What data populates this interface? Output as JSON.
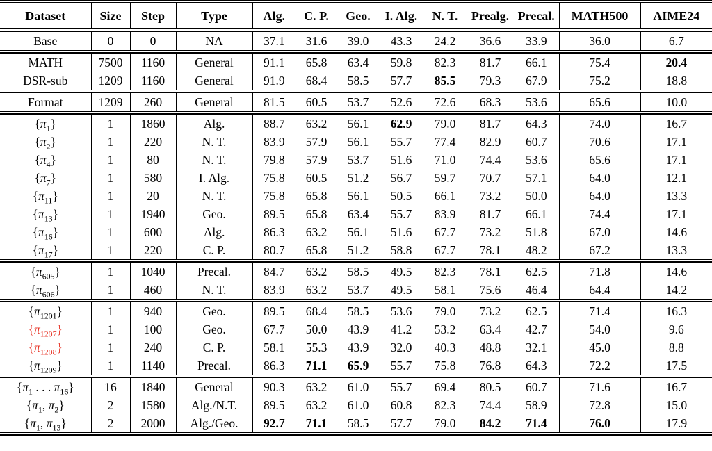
{
  "colors": {
    "text": "#000000",
    "rule": "#000000",
    "highlight_red": "#e8392c"
  },
  "table": {
    "columns": [
      {
        "key": "dataset",
        "label": "Dataset"
      },
      {
        "key": "size",
        "label": "Size"
      },
      {
        "key": "step",
        "label": "Step"
      },
      {
        "key": "type",
        "label": "Type"
      },
      {
        "key": "s0",
        "label": "Alg."
      },
      {
        "key": "s1",
        "label": "C. P."
      },
      {
        "key": "s2",
        "label": "Geo."
      },
      {
        "key": "s3",
        "label": "I. Alg."
      },
      {
        "key": "s4",
        "label": "N. T."
      },
      {
        "key": "s5",
        "label": "Prealg."
      },
      {
        "key": "s6",
        "label": "Precal."
      },
      {
        "key": "math500",
        "label": "MATH500"
      },
      {
        "key": "aime24",
        "label": "AIME24"
      }
    ],
    "groups": [
      {
        "rows": [
          {
            "dataset": "Base",
            "size": "0",
            "step": "0",
            "type": "NA",
            "scores": [
              "37.1",
              "31.6",
              "39.0",
              "43.3",
              "24.2",
              "36.6",
              "33.9"
            ],
            "math500": "36.0",
            "aime24": "6.7"
          }
        ]
      },
      {
        "rows": [
          {
            "dataset": "MATH",
            "size": "7500",
            "step": "1160",
            "type": "General",
            "scores": [
              "91.1",
              "65.8",
              "63.4",
              "59.8",
              "82.3",
              "81.7",
              "66.1"
            ],
            "math500": "75.4",
            "aime24": "20.4",
            "aime24_bold": true
          },
          {
            "dataset": "DSR-sub",
            "size": "1209",
            "step": "1160",
            "type": "General",
            "scores": [
              "91.9",
              "68.4",
              "58.5",
              "57.7",
              "85.5",
              "79.3",
              "67.9"
            ],
            "bold_scores": [
              4
            ],
            "math500": "75.2",
            "aime24": "18.8"
          }
        ]
      },
      {
        "rows": [
          {
            "dataset": "Format",
            "size": "1209",
            "step": "260",
            "type": "General",
            "scores": [
              "81.5",
              "60.5",
              "53.7",
              "52.6",
              "72.6",
              "68.3",
              "53.6"
            ],
            "math500": "65.6",
            "aime24": "10.0"
          }
        ]
      },
      {
        "rows": [
          {
            "dataset": "{π_1}",
            "size": "1",
            "step": "1860",
            "type": "Alg.",
            "scores": [
              "88.7",
              "63.2",
              "56.1",
              "62.9",
              "79.0",
              "81.7",
              "64.3"
            ],
            "bold_scores": [
              3
            ],
            "math500": "74.0",
            "aime24": "16.7"
          },
          {
            "dataset": "{π_2}",
            "size": "1",
            "step": "220",
            "type": "N. T.",
            "scores": [
              "83.9",
              "57.9",
              "56.1",
              "55.7",
              "77.4",
              "82.9",
              "60.7"
            ],
            "math500": "70.6",
            "aime24": "17.1"
          },
          {
            "dataset": "{π_4}",
            "size": "1",
            "step": "80",
            "type": "N. T.",
            "scores": [
              "79.8",
              "57.9",
              "53.7",
              "51.6",
              "71.0",
              "74.4",
              "53.6"
            ],
            "math500": "65.6",
            "aime24": "17.1"
          },
          {
            "dataset": "{π_7}",
            "size": "1",
            "step": "580",
            "type": "I. Alg.",
            "scores": [
              "75.8",
              "60.5",
              "51.2",
              "56.7",
              "59.7",
              "70.7",
              "57.1"
            ],
            "math500": "64.0",
            "aime24": "12.1"
          },
          {
            "dataset": "{π_11}",
            "size": "1",
            "step": "20",
            "type": "N. T.",
            "scores": [
              "75.8",
              "65.8",
              "56.1",
              "50.5",
              "66.1",
              "73.2",
              "50.0"
            ],
            "math500": "64.0",
            "aime24": "13.3"
          },
          {
            "dataset": "{π_13}",
            "size": "1",
            "step": "1940",
            "type": "Geo.",
            "scores": [
              "89.5",
              "65.8",
              "63.4",
              "55.7",
              "83.9",
              "81.7",
              "66.1"
            ],
            "math500": "74.4",
            "aime24": "17.1"
          },
          {
            "dataset": "{π_16}",
            "size": "1",
            "step": "600",
            "type": "Alg.",
            "scores": [
              "86.3",
              "63.2",
              "56.1",
              "51.6",
              "67.7",
              "73.2",
              "51.8"
            ],
            "math500": "67.0",
            "aime24": "14.6"
          },
          {
            "dataset": "{π_17}",
            "size": "1",
            "step": "220",
            "type": "C. P.",
            "scores": [
              "80.7",
              "65.8",
              "51.2",
              "58.8",
              "67.7",
              "78.1",
              "48.2"
            ],
            "math500": "67.2",
            "aime24": "13.3"
          }
        ]
      },
      {
        "rows": [
          {
            "dataset": "{π_605}",
            "size": "1",
            "step": "1040",
            "type": "Precal.",
            "scores": [
              "84.7",
              "63.2",
              "58.5",
              "49.5",
              "82.3",
              "78.1",
              "62.5"
            ],
            "math500": "71.8",
            "aime24": "14.6"
          },
          {
            "dataset": "{π_606}",
            "size": "1",
            "step": "460",
            "type": "N. T.",
            "scores": [
              "83.9",
              "63.2",
              "53.7",
              "49.5",
              "58.1",
              "75.6",
              "46.4"
            ],
            "math500": "64.4",
            "aime24": "14.2"
          }
        ]
      },
      {
        "rows": [
          {
            "dataset": "{π_1201}",
            "size": "1",
            "step": "940",
            "type": "Geo.",
            "scores": [
              "89.5",
              "68.4",
              "58.5",
              "53.6",
              "79.0",
              "73.2",
              "62.5"
            ],
            "math500": "71.4",
            "aime24": "16.3"
          },
          {
            "dataset": "{π_1207}",
            "red": true,
            "size": "1",
            "step": "100",
            "type": "Geo.",
            "scores": [
              "67.7",
              "50.0",
              "43.9",
              "41.2",
              "53.2",
              "63.4",
              "42.7"
            ],
            "math500": "54.0",
            "aime24": "9.6"
          },
          {
            "dataset": "{π_1208}",
            "red": true,
            "size": "1",
            "step": "240",
            "type": "C. P.",
            "scores": [
              "58.1",
              "55.3",
              "43.9",
              "32.0",
              "40.3",
              "48.8",
              "32.1"
            ],
            "math500": "45.0",
            "aime24": "8.8"
          },
          {
            "dataset": "{π_1209}",
            "size": "1",
            "step": "1140",
            "type": "Precal.",
            "scores": [
              "86.3",
              "71.1",
              "65.9",
              "55.7",
              "75.8",
              "76.8",
              "64.3"
            ],
            "bold_scores": [
              1,
              2
            ],
            "math500": "72.2",
            "aime24": "17.5"
          }
        ]
      },
      {
        "rows": [
          {
            "dataset": "{π_1 . . . π_16}",
            "size": "16",
            "step": "1840",
            "type": "General",
            "scores": [
              "90.3",
              "63.2",
              "61.0",
              "55.7",
              "69.4",
              "80.5",
              "60.7"
            ],
            "math500": "71.6",
            "aime24": "16.7"
          },
          {
            "dataset": "{π_1, π_2}",
            "size": "2",
            "step": "1580",
            "type": "Alg./N.T.",
            "scores": [
              "89.5",
              "63.2",
              "61.0",
              "60.8",
              "82.3",
              "74.4",
              "58.9"
            ],
            "math500": "72.8",
            "aime24": "15.0"
          },
          {
            "dataset": "{π_1, π_13}",
            "size": "2",
            "step": "2000",
            "type": "Alg./Geo.",
            "scores": [
              "92.7",
              "71.1",
              "58.5",
              "57.7",
              "79.0",
              "84.2",
              "71.4"
            ],
            "bold_scores": [
              0,
              1,
              5,
              6
            ],
            "math500": "76.0",
            "math500_bold": true,
            "aime24": "17.9"
          }
        ]
      }
    ]
  }
}
